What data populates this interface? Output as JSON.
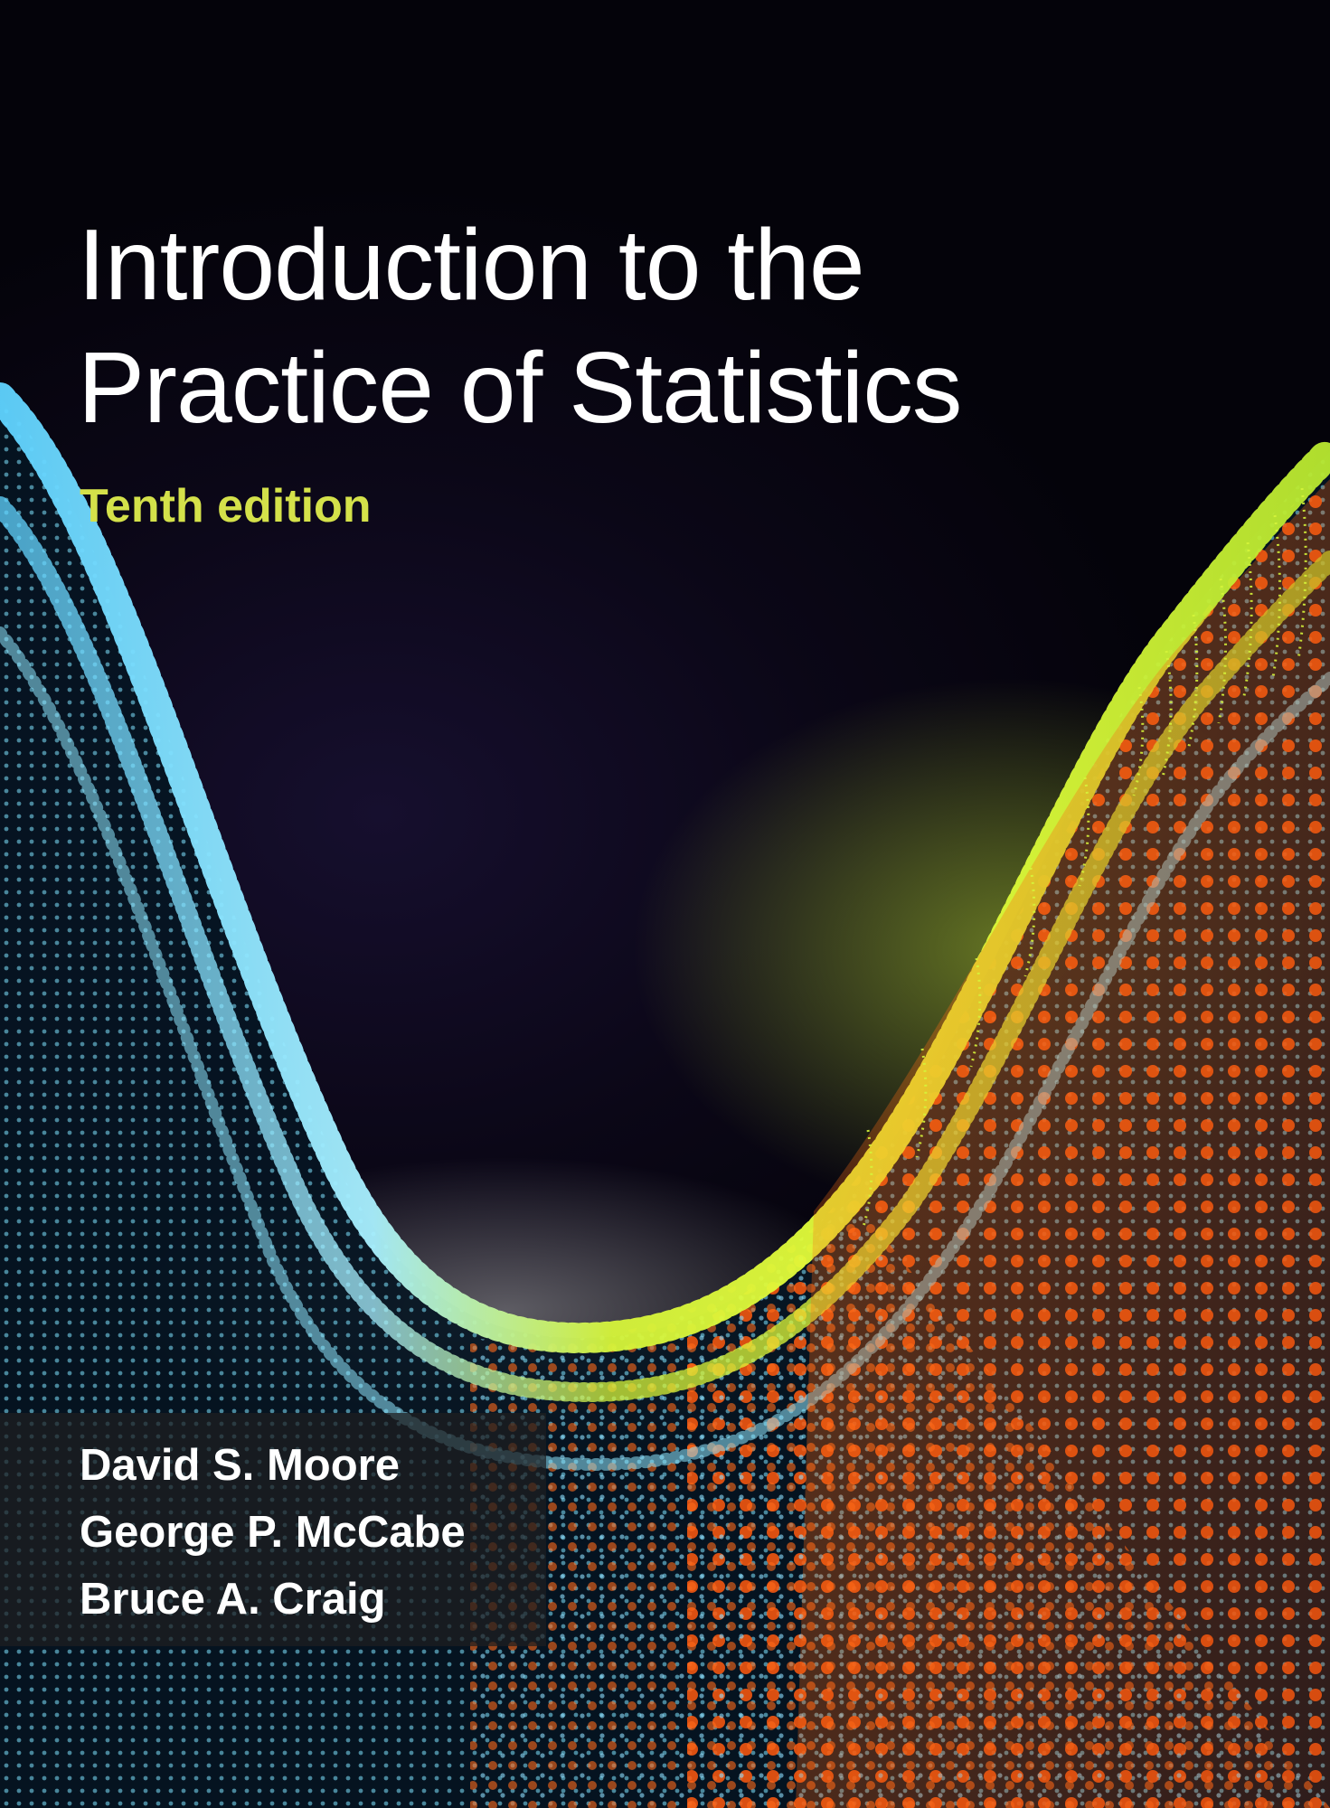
{
  "title": {
    "line1": "Introduction to the",
    "line2": "Practice of Statistics"
  },
  "edition": "Tenth edition",
  "authors": [
    "David S. Moore",
    "George P. McCabe",
    "Bruce A. Craig"
  ],
  "colors": {
    "background": "#07050f",
    "title": "#ffffff",
    "edition_accent": "#d4e14a",
    "wave_cyan": "#7fe4ff",
    "wave_lime": "#d6f53a",
    "wave_orange": "#ff6a1a"
  },
  "art": {
    "description_icon": "particle-wave-art"
  }
}
